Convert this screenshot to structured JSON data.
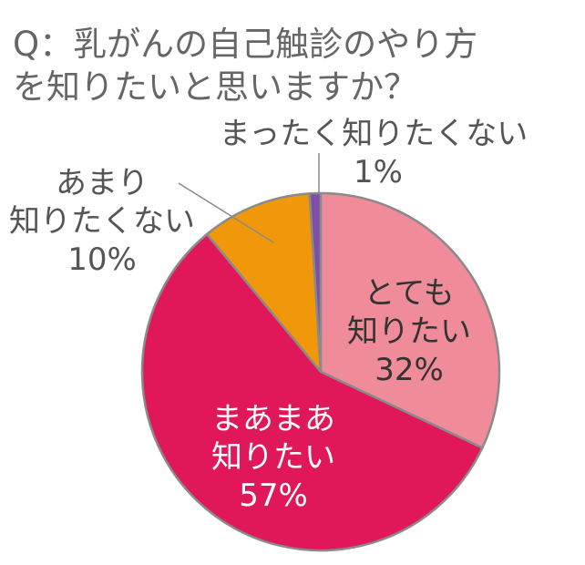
{
  "chart_data": {
    "type": "pie",
    "title": [
      "Q：乳がんの自己触診のやり方",
      "を知りたいと思いますか？"
    ],
    "categories": [
      "とても知りたい",
      "まあまあ知りたい",
      "あまり知りたくない",
      "まったく知りたくない"
    ],
    "values": [
      32,
      57,
      10,
      1
    ],
    "labels": [
      [
        "とても",
        "知りたい",
        "32%"
      ],
      [
        "まあまあ",
        "知りたい",
        "57%"
      ],
      [
        "あまり",
        "知りたくない",
        "10%"
      ],
      [
        "まったく知りたくない",
        "1%"
      ]
    ],
    "value_unit": "%",
    "legend": "none",
    "colors": [
      "#F08C9A",
      "#E0185A",
      "#F0980A",
      "#7F4FA8"
    ],
    "border_color": "#8a8a8a"
  }
}
